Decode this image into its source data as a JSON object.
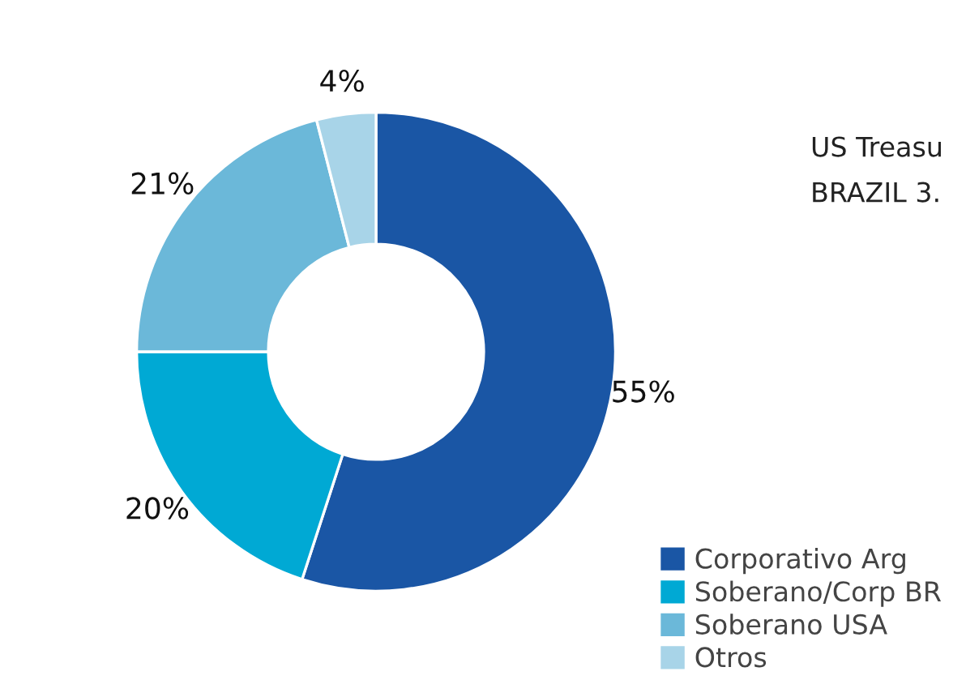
{
  "chart_data": {
    "type": "donut",
    "categories": [
      "Corporativo Arg",
      "Soberano/Corp BR",
      "Soberano USA",
      "Otros"
    ],
    "values": [
      55,
      20,
      21,
      4
    ],
    "colors": [
      "#1a56a5",
      "#00a9d4",
      "#6bb8d9",
      "#a8d4e8"
    ],
    "value_labels": [
      "55%",
      "20%",
      "21%",
      "4%"
    ],
    "legend": "bottom right",
    "annotations": [
      "US Treasu",
      "BRAZIL 3."
    ]
  }
}
